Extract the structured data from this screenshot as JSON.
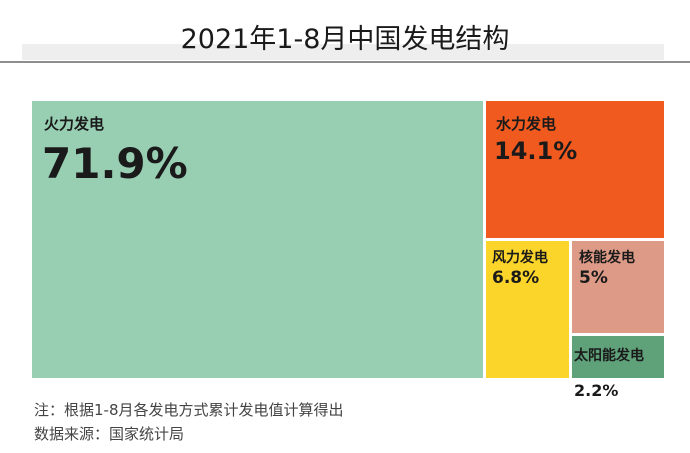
{
  "chart_data": {
    "type": "treemap",
    "title": "2021年1-8月中国发电结构",
    "items": [
      {
        "label": "火力发电",
        "value_label": "71.9%",
        "value": 71.9,
        "color": "#98cfb3"
      },
      {
        "label": "水力发电",
        "value_label": "14.1%",
        "value": 14.1,
        "color": "#f05a1f"
      },
      {
        "label": "风力发电",
        "value_label": "6.8%",
        "value": 6.8,
        "color": "#fbd52a"
      },
      {
        "label": "核能发电",
        "value_label": "5%",
        "value": 5,
        "color": "#dd9a86"
      },
      {
        "label": "太阳能发电",
        "value_label": "2.2%",
        "value": 2.2,
        "color": "#5fa27a"
      }
    ]
  },
  "notes": {
    "note": "注：根据1-8月各发电方式累计发电值计算得出",
    "source": "数据来源：国家统计局"
  }
}
